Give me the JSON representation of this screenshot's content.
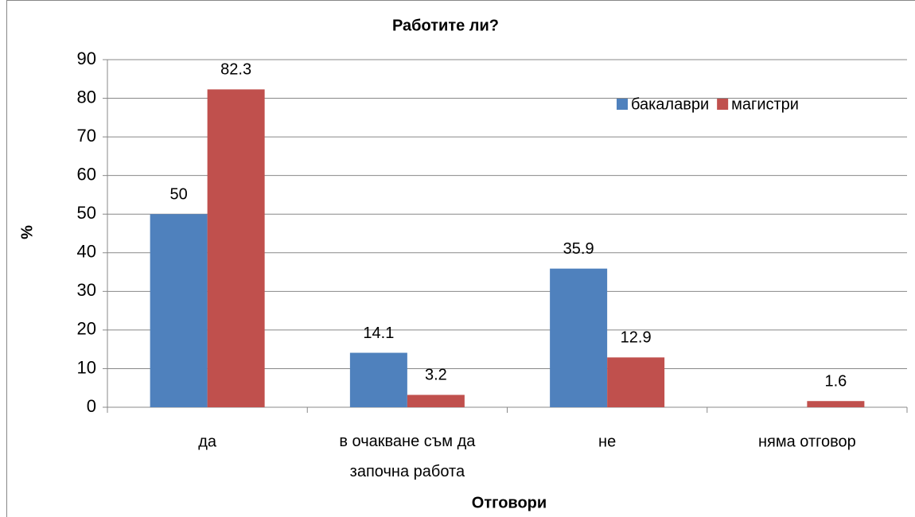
{
  "chart_data": {
    "type": "bar",
    "title": "Работите ли?",
    "y_label": "%",
    "x_label": "Отговори",
    "categories": [
      "да",
      "в очакване съм да започна работа",
      "не",
      "няма отговор"
    ],
    "series": [
      {
        "name": "бакалаври",
        "color": "#4f81bd",
        "values": [
          50,
          14.1,
          35.9,
          null
        ]
      },
      {
        "name": "магистри",
        "color": "#c0504d",
        "values": [
          82.3,
          3.2,
          12.9,
          1.6
        ]
      }
    ],
    "ylim": [
      0,
      90
    ],
    "yticks": [
      0,
      10,
      20,
      30,
      40,
      50,
      60,
      70,
      80,
      90
    ],
    "grid": true,
    "legend": "top-right"
  }
}
